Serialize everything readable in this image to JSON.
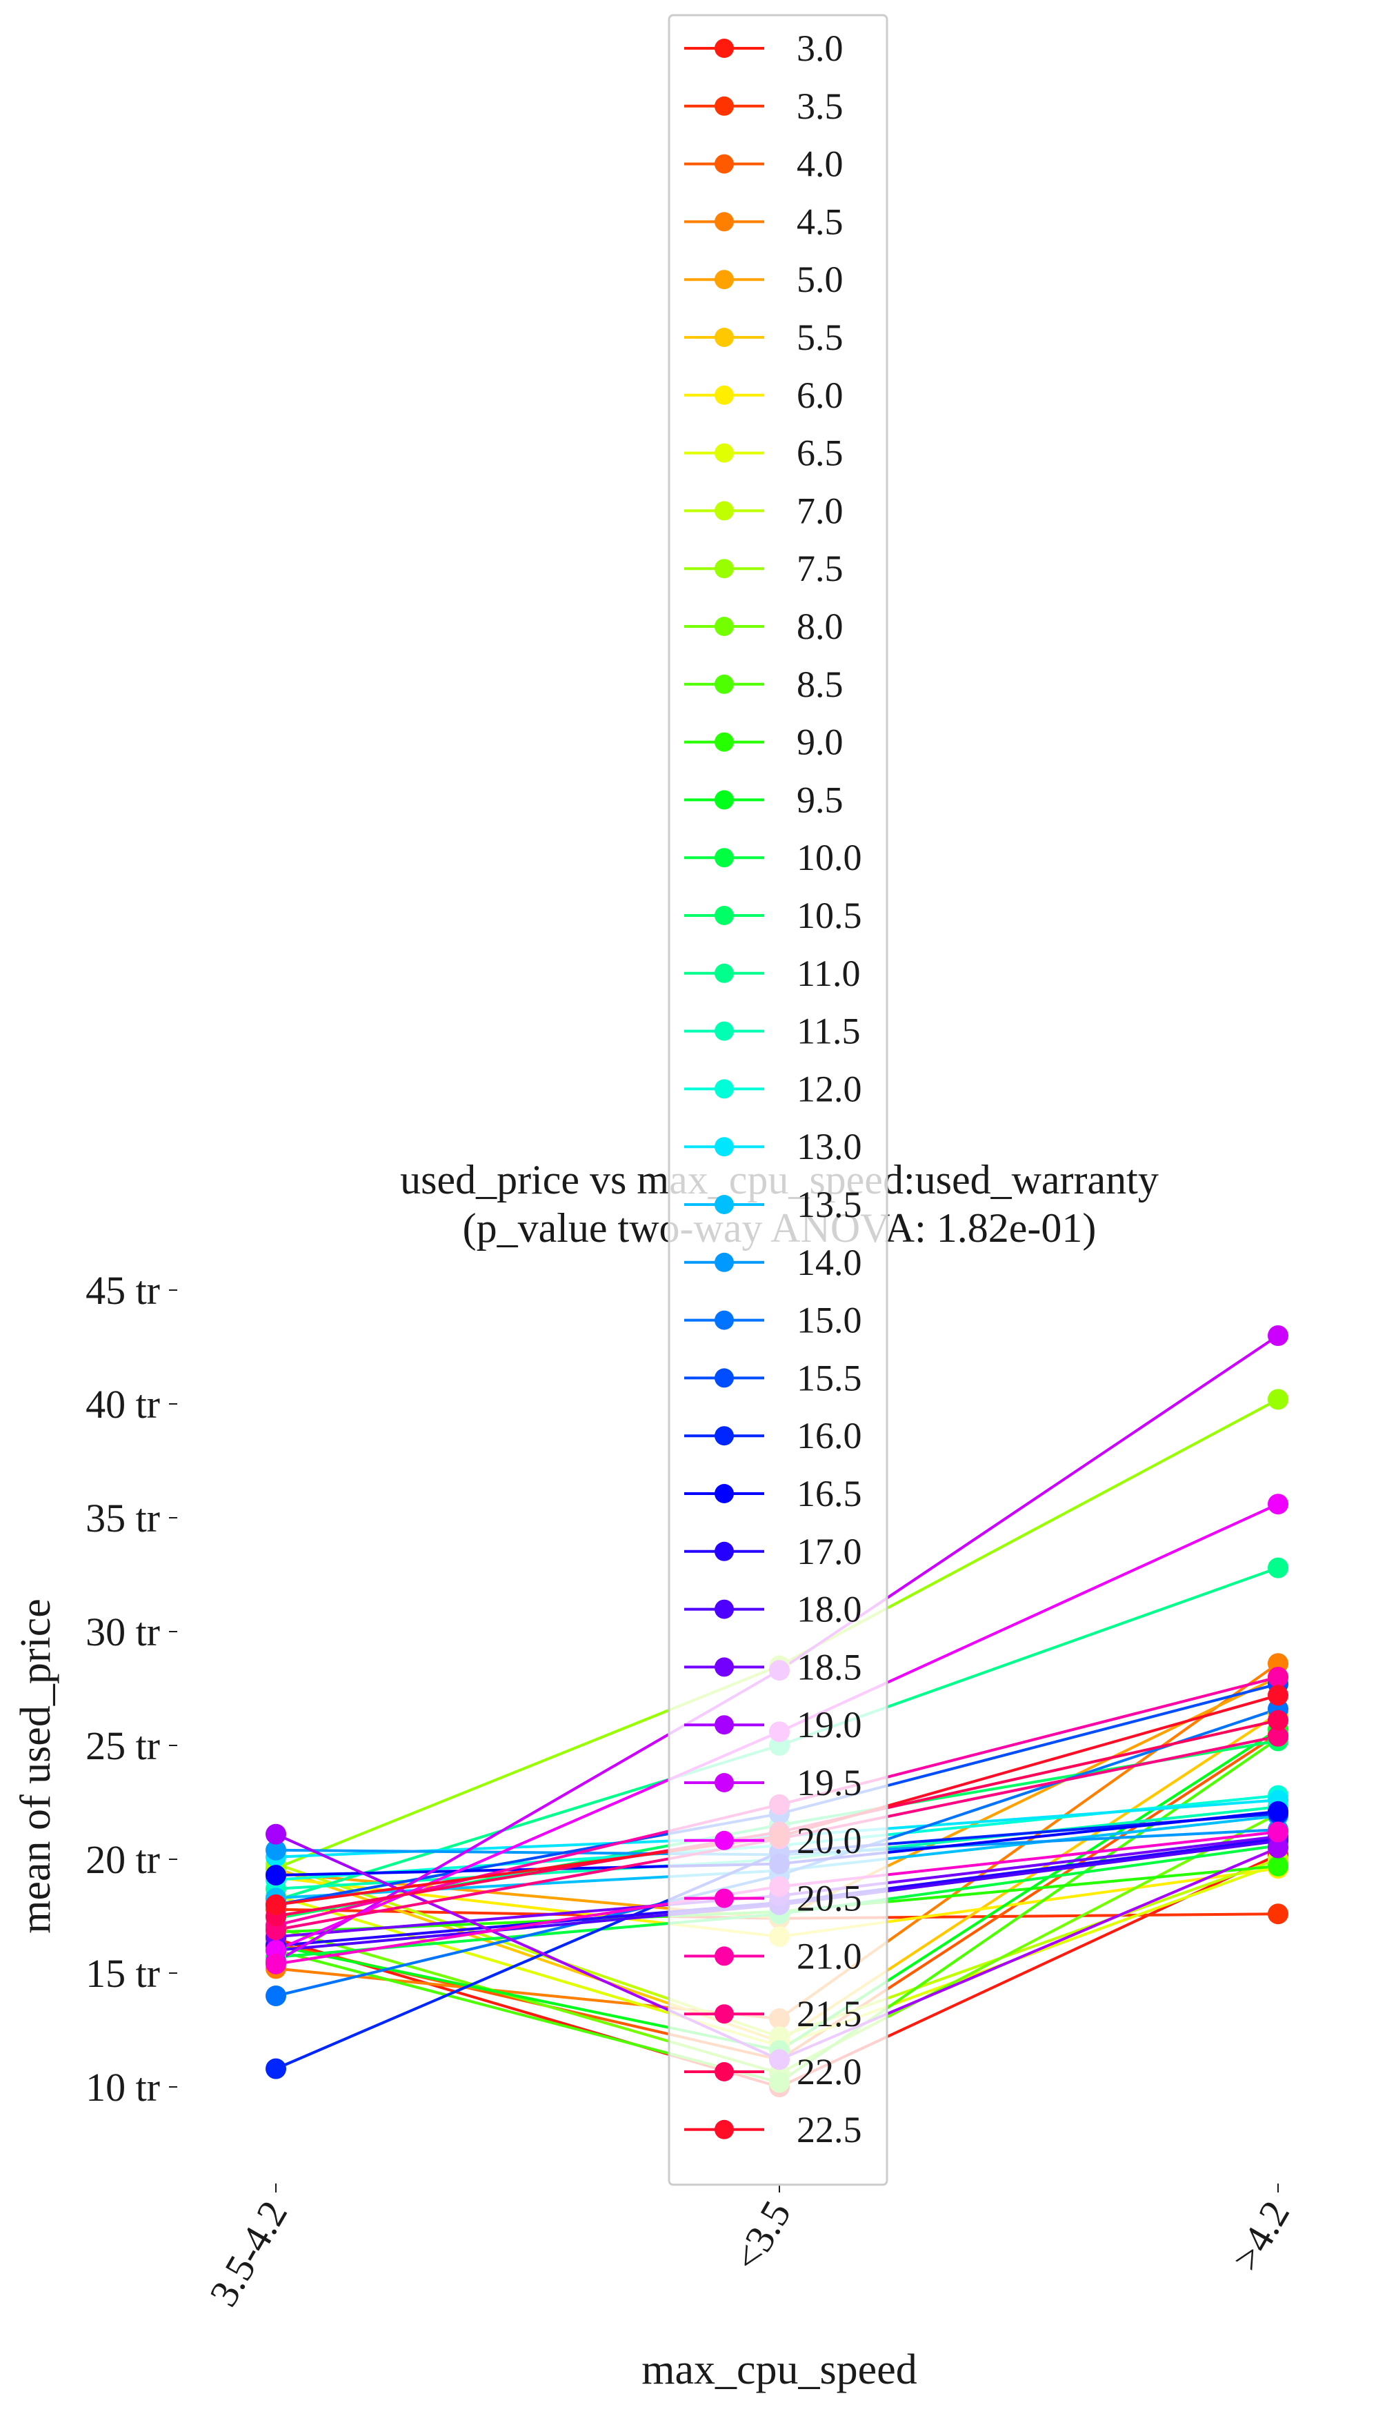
{
  "chart_data": {
    "type": "line",
    "title": "used_price vs max_cpu_speed:used_warranty",
    "subtitle": "(p_value two-way ANOVA: 1.82e-01)",
    "xlabel": "max_cpu_speed",
    "ylabel": "mean of used_price",
    "categories": [
      "3.5-4.2",
      "<3.5",
      ">4.2"
    ],
    "ylim": [
      5.5,
      47
    ],
    "yticks": [
      {
        "value": 10,
        "label": "10 tr"
      },
      {
        "value": 15,
        "label": "15 tr"
      },
      {
        "value": 20,
        "label": "20 tr"
      },
      {
        "value": 25,
        "label": "25 tr"
      },
      {
        "value": 30,
        "label": "30 tr"
      },
      {
        "value": 35,
        "label": "35 tr"
      },
      {
        "value": 40,
        "label": "40 tr"
      },
      {
        "value": 45,
        "label": "45 tr"
      }
    ],
    "legend_position": "top-center",
    "series": [
      {
        "name": "3.0",
        "color": "#ff1a0d",
        "values": [
          16.5,
          10.0,
          20.2
        ]
      },
      {
        "name": "3.5",
        "color": "#ff3300",
        "values": [
          17.8,
          17.4,
          17.6
        ]
      },
      {
        "name": "4.0",
        "color": "#ff5a00",
        "values": [
          16.3,
          11.2,
          25.5
        ]
      },
      {
        "name": "4.5",
        "color": "#ff7f00",
        "values": [
          15.2,
          13.0,
          28.6
        ]
      },
      {
        "name": "5.0",
        "color": "#ffa200",
        "values": [
          19.4,
          17.4,
          28.0
        ]
      },
      {
        "name": "5.5",
        "color": "#ffc800",
        "values": [
          19.6,
          12.0,
          26.4
        ]
      },
      {
        "name": "6.0",
        "color": "#ffee00",
        "values": [
          19.2,
          16.6,
          19.6
        ]
      },
      {
        "name": "6.5",
        "color": "#e0ff00",
        "values": [
          18.4,
          11.8,
          19.8
        ]
      },
      {
        "name": "7.0",
        "color": "#bfff00",
        "values": [
          19.8,
          12.2,
          20.0
        ]
      },
      {
        "name": "7.5",
        "color": "#99ff00",
        "values": [
          19.6,
          28.5,
          40.2
        ]
      },
      {
        "name": "8.0",
        "color": "#73ff00",
        "values": [
          17.0,
          10.6,
          22.0
        ]
      },
      {
        "name": "8.5",
        "color": "#4dff00",
        "values": [
          16.0,
          10.2,
          25.3
        ]
      },
      {
        "name": "9.0",
        "color": "#26ff00",
        "values": [
          16.8,
          17.7,
          19.7
        ]
      },
      {
        "name": "9.5",
        "color": "#00ff1a",
        "values": [
          16.2,
          11.6,
          25.7
        ]
      },
      {
        "name": "10.0",
        "color": "#00ff40",
        "values": [
          15.7,
          17.6,
          20.6
        ]
      },
      {
        "name": "10.5",
        "color": "#00ff66",
        "values": [
          17.4,
          21.5,
          25.2
        ]
      },
      {
        "name": "11.0",
        "color": "#00ff8c",
        "values": [
          18.2,
          25.0,
          32.8
        ]
      },
      {
        "name": "11.5",
        "color": "#00ffb3",
        "values": [
          18.7,
          20.0,
          22.3
        ]
      },
      {
        "name": "12.0",
        "color": "#00ffd9",
        "values": [
          19.1,
          20.6,
          22.8
        ]
      },
      {
        "name": "13.0",
        "color": "#00e6ff",
        "values": [
          20.1,
          21.0,
          22.6
        ]
      },
      {
        "name": "13.5",
        "color": "#00bfff",
        "values": [
          18.3,
          19.5,
          21.9
        ]
      },
      {
        "name": "14.0",
        "color": "#0099ff",
        "values": [
          20.4,
          20.2,
          21.3
        ]
      },
      {
        "name": "15.0",
        "color": "#0073ff",
        "values": [
          14.0,
          19.3,
          26.6
        ]
      },
      {
        "name": "15.5",
        "color": "#004dff",
        "values": [
          18.0,
          22.0,
          27.7
        ]
      },
      {
        "name": "16.0",
        "color": "#0026ff",
        "values": [
          10.8,
          20.3,
          22.0
        ]
      },
      {
        "name": "16.5",
        "color": "#0000ff",
        "values": [
          19.3,
          19.8,
          22.1
        ]
      },
      {
        "name": "17.0",
        "color": "#2600ff",
        "values": [
          16.2,
          18.1,
          20.9
        ]
      },
      {
        "name": "18.0",
        "color": "#4d00ff",
        "values": [
          16.0,
          18.0,
          20.8
        ]
      },
      {
        "name": "18.5",
        "color": "#7300ff",
        "values": [
          16.6,
          18.4,
          21.0
        ]
      },
      {
        "name": "19.0",
        "color": "#a600ff",
        "values": [
          21.1,
          11.2,
          20.5
        ]
      },
      {
        "name": "19.5",
        "color": "#cc00ff",
        "values": [
          15.5,
          28.3,
          43.0
        ]
      },
      {
        "name": "20.0",
        "color": "#f000ff",
        "values": [
          16.0,
          25.6,
          35.6
        ]
      },
      {
        "name": "20.5",
        "color": "#ff00cc",
        "values": [
          15.4,
          18.8,
          21.2
        ]
      },
      {
        "name": "21.0",
        "color": "#ff00a6",
        "values": [
          17.1,
          22.4,
          28.0
        ]
      },
      {
        "name": "21.5",
        "color": "#ff0080",
        "values": [
          16.9,
          20.9,
          25.4
        ]
      },
      {
        "name": "22.0",
        "color": "#ff0059",
        "values": [
          17.5,
          21.2,
          26.1
        ]
      },
      {
        "name": "22.5",
        "color": "#ff0d26",
        "values": [
          18.0,
          21.0,
          27.2
        ]
      }
    ]
  }
}
